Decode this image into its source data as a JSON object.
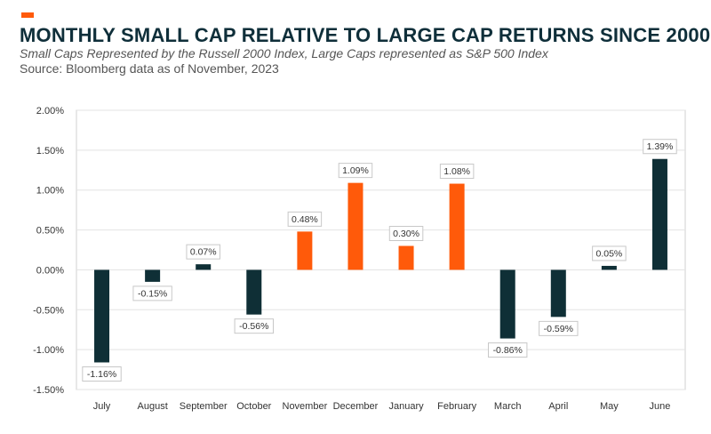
{
  "chart_data": {
    "type": "bar",
    "title": "MONTHLY SMALL CAP RELATIVE TO LARGE CAP RETURNS SINCE 2000",
    "subtitle": "Small Caps Represented by the Russell 2000 Index, Large Caps represented as S&P 500 Index",
    "source": "Source: Bloomberg data as of November, 2023",
    "categories": [
      "July",
      "August",
      "September",
      "October",
      "November",
      "December",
      "January",
      "February",
      "March",
      "April",
      "May",
      "June"
    ],
    "values": [
      -1.16,
      -0.15,
      0.07,
      -0.56,
      0.48,
      1.09,
      0.3,
      1.08,
      -0.86,
      -0.59,
      0.05,
      1.39
    ],
    "data_labels": [
      "-1.16%",
      "-0.15%",
      "0.07%",
      "-0.56%",
      "0.48%",
      "1.09%",
      "0.30%",
      "1.08%",
      "-0.86%",
      "-0.59%",
      "0.05%",
      "1.39%"
    ],
    "highlighted": [
      false,
      false,
      false,
      false,
      true,
      true,
      true,
      true,
      false,
      false,
      false,
      false
    ],
    "yticks": [
      2.0,
      1.5,
      1.0,
      0.5,
      0.0,
      -0.5,
      -1.0,
      -1.5
    ],
    "ytick_labels": [
      "2.00%",
      "1.50%",
      "1.00%",
      "0.50%",
      "0.00%",
      "-0.50%",
      "-1.00%",
      "-1.50%"
    ],
    "ylim": [
      -1.5,
      2.0
    ],
    "xlabel": "",
    "ylabel": "",
    "grid": true,
    "colors": {
      "default_bar": "#0f2f36",
      "highlight_bar": "#ff5a0a",
      "accent": "#ff5a0a",
      "grid": "#e3e3e3",
      "plot_border": "#d0d0d0"
    }
  }
}
